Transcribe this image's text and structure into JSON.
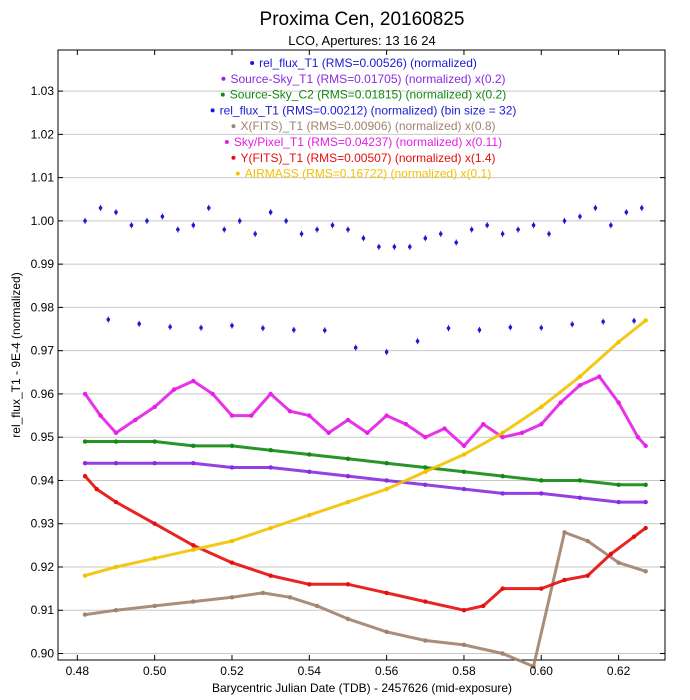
{
  "chart_data": {
    "type": "scatter",
    "title": "Proxima Cen, 20160825",
    "subtitle": "LCO, Apertures: 13 16 24",
    "xlabel": "Barycentric Julian Date (TDB) - 2457626 (mid-exposure)",
    "ylabel": "rel_flux_T1 - 9E-4 (normalized)",
    "xlim": [
      0.475,
      0.632
    ],
    "ylim": [
      0.8985,
      1.0395
    ],
    "xticks": [
      "0.48",
      "0.50",
      "0.52",
      "0.54",
      "0.56",
      "0.58",
      "0.60",
      "0.62"
    ],
    "yticks": [
      "0.90",
      "0.91",
      "0.92",
      "0.93",
      "0.94",
      "0.95",
      "0.96",
      "0.97",
      "0.98",
      "0.99",
      "1.00",
      "1.01",
      "1.02",
      "1.03"
    ],
    "grid": "horizontal",
    "legend_position": "top-center",
    "series": [
      {
        "name": "rel_flux_T1 (RMS=0.00526) (normalized)",
        "color": "#1a1ad6",
        "marker": "errorbar",
        "x": [
          0.482,
          0.486,
          0.49,
          0.494,
          0.498,
          0.502,
          0.506,
          0.51,
          0.514,
          0.518,
          0.522,
          0.526,
          0.53,
          0.534,
          0.538,
          0.542,
          0.546,
          0.55,
          0.554,
          0.558,
          0.562,
          0.566,
          0.57,
          0.574,
          0.578,
          0.582,
          0.586,
          0.59,
          0.594,
          0.598,
          0.602,
          0.606,
          0.61,
          0.614,
          0.618,
          0.622,
          0.626
        ],
        "y": [
          1.0,
          1.003,
          1.002,
          0.999,
          1.0,
          1.001,
          0.998,
          0.999,
          1.003,
          0.998,
          1.0,
          0.997,
          1.002,
          1.0,
          0.997,
          0.998,
          0.999,
          0.998,
          0.996,
          0.994,
          0.994,
          0.994,
          0.996,
          0.997,
          0.995,
          0.998,
          0.999,
          0.997,
          0.998,
          0.999,
          0.997,
          1.0,
          1.001,
          1.003,
          0.999,
          1.002,
          1.003
        ]
      },
      {
        "name": "Source-Sky_T1 (RMS=0.01705) (normalized) x(0.2)",
        "color": "#8a2be2",
        "marker": "dot",
        "x": [
          0.482,
          0.49,
          0.5,
          0.51,
          0.52,
          0.53,
          0.54,
          0.55,
          0.56,
          0.57,
          0.58,
          0.59,
          0.6,
          0.61,
          0.62,
          0.627
        ],
        "y": [
          0.944,
          0.944,
          0.944,
          0.944,
          0.943,
          0.943,
          0.942,
          0.941,
          0.94,
          0.939,
          0.938,
          0.937,
          0.937,
          0.936,
          0.935,
          0.935
        ]
      },
      {
        "name": "Source-Sky_C2 (RMS=0.01815) (normalized) x(0.2)",
        "color": "#108a10",
        "marker": "dot",
        "x": [
          0.482,
          0.49,
          0.5,
          0.51,
          0.52,
          0.53,
          0.54,
          0.55,
          0.56,
          0.57,
          0.58,
          0.59,
          0.6,
          0.61,
          0.62,
          0.627
        ],
        "y": [
          0.949,
          0.949,
          0.949,
          0.948,
          0.948,
          0.947,
          0.946,
          0.945,
          0.944,
          0.943,
          0.942,
          0.941,
          0.94,
          0.94,
          0.939,
          0.939
        ]
      },
      {
        "name": "rel_flux_T1 (RMS=0.00212) (normalized) (bin size = 32)",
        "color": "#1a1ad6",
        "marker": "errorbar",
        "x": [
          0.488,
          0.496,
          0.504,
          0.512,
          0.52,
          0.528,
          0.536,
          0.544,
          0.552,
          0.56,
          0.568,
          0.576,
          0.584,
          0.592,
          0.6,
          0.608,
          0.616,
          0.624
        ],
        "y": [
          0.9772,
          0.9762,
          0.9755,
          0.9753,
          0.9758,
          0.9752,
          0.9748,
          0.9747,
          0.9707,
          0.9697,
          0.9722,
          0.9752,
          0.9748,
          0.9754,
          0.9753,
          0.9761,
          0.9767,
          0.9769
        ]
      },
      {
        "name": "X(FITS)_T1 (RMS=0.00906) (normalized) x(0.8)",
        "color": "#a0826d",
        "marker": "dot",
        "x": [
          0.482,
          0.49,
          0.5,
          0.51,
          0.52,
          0.528,
          0.535,
          0.542,
          0.55,
          0.56,
          0.57,
          0.58,
          0.59,
          0.598,
          0.606,
          0.612,
          0.62,
          0.627
        ],
        "y": [
          0.909,
          0.91,
          0.911,
          0.912,
          0.913,
          0.914,
          0.913,
          0.911,
          0.908,
          0.905,
          0.903,
          0.902,
          0.9,
          0.897,
          0.928,
          0.926,
          0.921,
          0.919
        ]
      },
      {
        "name": "Sky/Pixel_T1 (RMS=0.04237) (normalized) x(0.11)",
        "color": "#e61ee6",
        "marker": "dot",
        "x": [
          0.482,
          0.486,
          0.49,
          0.495,
          0.5,
          0.505,
          0.51,
          0.515,
          0.52,
          0.525,
          0.53,
          0.535,
          0.54,
          0.545,
          0.55,
          0.555,
          0.56,
          0.565,
          0.57,
          0.575,
          0.58,
          0.585,
          0.59,
          0.595,
          0.6,
          0.605,
          0.61,
          0.615,
          0.62,
          0.625,
          0.627
        ],
        "y": [
          0.96,
          0.955,
          0.951,
          0.954,
          0.957,
          0.961,
          0.963,
          0.96,
          0.955,
          0.955,
          0.96,
          0.956,
          0.955,
          0.951,
          0.954,
          0.951,
          0.955,
          0.953,
          0.95,
          0.952,
          0.948,
          0.953,
          0.95,
          0.951,
          0.953,
          0.958,
          0.962,
          0.964,
          0.958,
          0.95,
          0.948
        ]
      },
      {
        "name": "Y(FITS)_T1 (RMS=0.00507) (normalized) x(1.4)",
        "color": "#e60d0d",
        "marker": "dot",
        "x": [
          0.482,
          0.485,
          0.49,
          0.5,
          0.51,
          0.52,
          0.53,
          0.54,
          0.55,
          0.56,
          0.57,
          0.58,
          0.585,
          0.59,
          0.6,
          0.606,
          0.612,
          0.618,
          0.624,
          0.627
        ],
        "y": [
          0.941,
          0.938,
          0.935,
          0.93,
          0.925,
          0.921,
          0.918,
          0.916,
          0.916,
          0.914,
          0.912,
          0.91,
          0.911,
          0.915,
          0.915,
          0.917,
          0.918,
          0.923,
          0.927,
          0.929
        ]
      },
      {
        "name": "AIRMASS (RMS=0.16722) (normalized) x(0.1)",
        "color": "#f2c200",
        "marker": "dot",
        "x": [
          0.482,
          0.49,
          0.5,
          0.51,
          0.52,
          0.53,
          0.54,
          0.55,
          0.56,
          0.57,
          0.58,
          0.59,
          0.6,
          0.61,
          0.62,
          0.627
        ],
        "y": [
          0.918,
          0.92,
          0.922,
          0.924,
          0.926,
          0.929,
          0.932,
          0.935,
          0.938,
          0.942,
          0.946,
          0.951,
          0.957,
          0.964,
          0.972,
          0.977
        ]
      }
    ]
  }
}
